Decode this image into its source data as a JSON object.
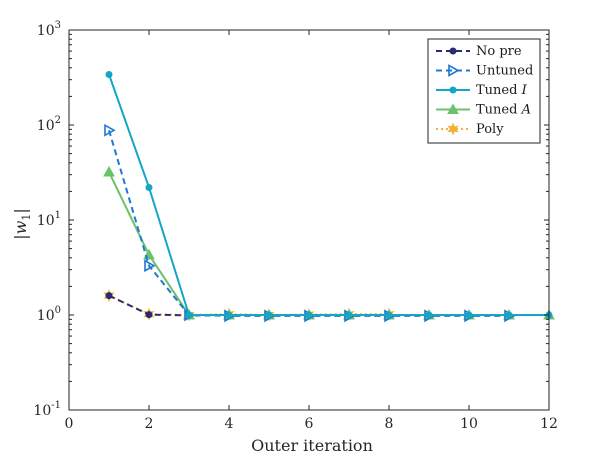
{
  "chart_data": {
    "type": "line",
    "title": "",
    "xlabel": "Outer iteration",
    "ylabel": "|w_1|",
    "xlim": [
      0,
      12
    ],
    "ylim": [
      0.1,
      1000
    ],
    "yscale": "log",
    "grid": false,
    "legend_position": "top-right",
    "x_ticks": [
      "0",
      "2",
      "4",
      "6",
      "8",
      "10",
      "12"
    ],
    "y_ticks": [
      {
        "value": 0.1,
        "base": "10",
        "exp": "-1"
      },
      {
        "value": 1,
        "base": "10",
        "exp": "0"
      },
      {
        "value": 10,
        "base": "10",
        "exp": "1"
      },
      {
        "value": 100,
        "base": "10",
        "exp": "2"
      },
      {
        "value": 1000,
        "base": "10",
        "exp": "3"
      }
    ],
    "series": [
      {
        "name": "No pre",
        "color": "#2b2a73",
        "dash": "dashed",
        "marker": "circle",
        "x": [
          1,
          2,
          3,
          4,
          5,
          6,
          7,
          8
        ],
        "y": [
          1.6,
          1.01,
          0.99,
          0.99,
          0.99,
          0.99,
          0.99,
          0.99
        ]
      },
      {
        "name": "Untuned",
        "color": "#1f78d1",
        "dash": "dashed",
        "marker": "triangle-right",
        "x": [
          1,
          2,
          3,
          4,
          5,
          6,
          7,
          8,
          9,
          10,
          11
        ],
        "y": [
          88,
          3.3,
          1.0,
          0.98,
          0.98,
          0.98,
          0.98,
          0.98,
          0.98,
          0.98,
          0.98
        ]
      },
      {
        "name": "Tuned I",
        "name_main": "Tuned ",
        "name_italic": "I",
        "color": "#13a6c5",
        "dash": "solid",
        "marker": "circle",
        "x": [
          1,
          2,
          3,
          4,
          5,
          6,
          7,
          8,
          9,
          10,
          11,
          12
        ],
        "y": [
          340,
          22,
          1.0,
          1.0,
          1.0,
          1.0,
          1.0,
          1.0,
          1.0,
          1.0,
          1.0,
          1.0
        ]
      },
      {
        "name": "Tuned A",
        "name_main": "Tuned ",
        "name_italic": "A",
        "color": "#6cc16c",
        "dash": "solid",
        "marker": "triangle-up",
        "x": [
          1,
          2,
          3,
          4,
          5,
          6,
          7,
          8,
          9,
          10,
          11,
          12
        ],
        "y": [
          32,
          4.3,
          1.0,
          1.0,
          1.0,
          1.0,
          1.0,
          1.0,
          1.0,
          1.0,
          1.0,
          1.0
        ]
      },
      {
        "name": "Poly",
        "color": "#f2b134",
        "dash": "dotted",
        "marker": "star",
        "x": [
          1,
          2,
          3,
          4,
          5,
          6,
          7,
          8
        ],
        "y": [
          1.6,
          1.02,
          1.0,
          1.02,
          1.0,
          1.01,
          1.02,
          1.02
        ]
      }
    ]
  }
}
